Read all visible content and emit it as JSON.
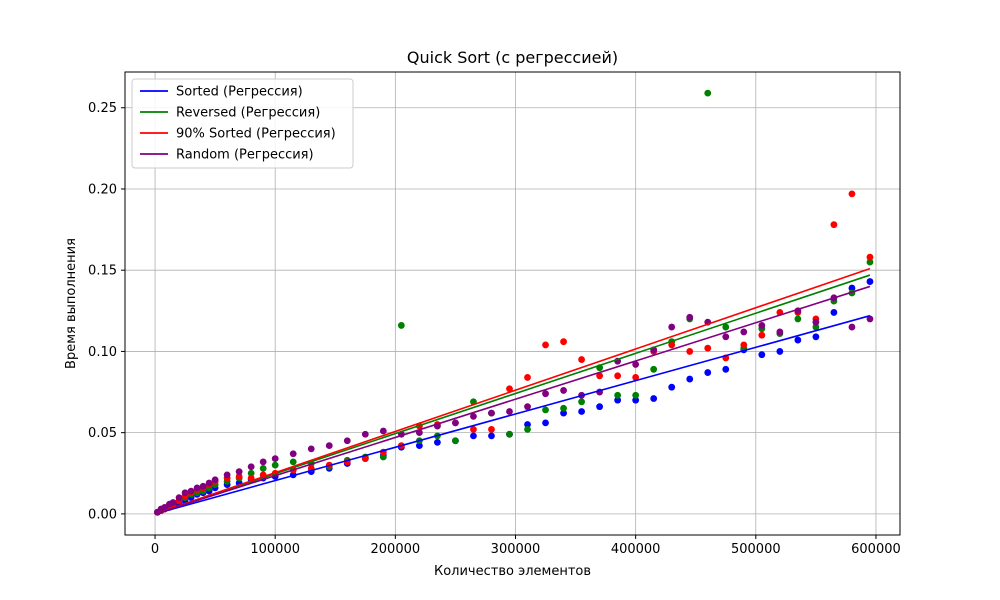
{
  "chart_data": {
    "type": "scatter",
    "title": "Quick Sort (с регрессией)",
    "xlabel": "Количество элементов",
    "ylabel": "Время выполнения",
    "xlim": [
      -25000,
      620000
    ],
    "ylim": [
      -0.013,
      0.272
    ],
    "xticks": [
      0,
      100000,
      200000,
      300000,
      400000,
      500000,
      600000
    ],
    "yticks": [
      0.0,
      0.05,
      0.1,
      0.15,
      0.2,
      0.25
    ],
    "xtick_labels": [
      "0",
      "100000",
      "200000",
      "300000",
      "400000",
      "500000",
      "600000"
    ],
    "ytick_labels": [
      "0.00",
      "0.05",
      "0.10",
      "0.15",
      "0.20",
      "0.25"
    ],
    "grid": true,
    "legend_position": "top-left",
    "series": [
      {
        "name": "Sorted (Регрессия)",
        "color": "#0000ff",
        "regression": [
          [
            0,
            0.0
          ],
          [
            595000,
            0.122
          ]
        ],
        "points": [
          [
            2000,
            0.001
          ],
          [
            5000,
            0.002
          ],
          [
            8000,
            0.003
          ],
          [
            12000,
            0.004
          ],
          [
            15000,
            0.005
          ],
          [
            20000,
            0.006
          ],
          [
            25000,
            0.008
          ],
          [
            30000,
            0.01
          ],
          [
            35000,
            0.012
          ],
          [
            40000,
            0.013
          ],
          [
            45000,
            0.014
          ],
          [
            50000,
            0.016
          ],
          [
            60000,
            0.018
          ],
          [
            70000,
            0.019
          ],
          [
            80000,
            0.021
          ],
          [
            90000,
            0.022
          ],
          [
            100000,
            0.023
          ],
          [
            115000,
            0.024
          ],
          [
            130000,
            0.026
          ],
          [
            145000,
            0.028
          ],
          [
            160000,
            0.031
          ],
          [
            175000,
            0.034
          ],
          [
            190000,
            0.036
          ],
          [
            205000,
            0.041
          ],
          [
            220000,
            0.042
          ],
          [
            235000,
            0.044
          ],
          [
            250000,
            0.045
          ],
          [
            265000,
            0.048
          ],
          [
            280000,
            0.048
          ],
          [
            295000,
            0.049
          ],
          [
            310000,
            0.055
          ],
          [
            325000,
            0.056
          ],
          [
            340000,
            0.062
          ],
          [
            355000,
            0.063
          ],
          [
            370000,
            0.066
          ],
          [
            385000,
            0.07
          ],
          [
            400000,
            0.07
          ],
          [
            415000,
            0.071
          ],
          [
            430000,
            0.078
          ],
          [
            445000,
            0.083
          ],
          [
            460000,
            0.087
          ],
          [
            475000,
            0.089
          ],
          [
            490000,
            0.101
          ],
          [
            505000,
            0.098
          ],
          [
            520000,
            0.1
          ],
          [
            535000,
            0.107
          ],
          [
            550000,
            0.109
          ],
          [
            565000,
            0.124
          ],
          [
            580000,
            0.139
          ],
          [
            595000,
            0.143
          ]
        ]
      },
      {
        "name": "Reversed (Регрессия)",
        "color": "#008000",
        "regression": [
          [
            0,
            0.0
          ],
          [
            595000,
            0.147
          ]
        ],
        "points": [
          [
            2000,
            0.001
          ],
          [
            5000,
            0.002
          ],
          [
            8000,
            0.003
          ],
          [
            12000,
            0.005
          ],
          [
            15000,
            0.006
          ],
          [
            20000,
            0.008
          ],
          [
            25000,
            0.01
          ],
          [
            30000,
            0.012
          ],
          [
            35000,
            0.013
          ],
          [
            40000,
            0.014
          ],
          [
            45000,
            0.016
          ],
          [
            50000,
            0.018
          ],
          [
            60000,
            0.02
          ],
          [
            70000,
            0.022
          ],
          [
            80000,
            0.025
          ],
          [
            90000,
            0.028
          ],
          [
            100000,
            0.03
          ],
          [
            115000,
            0.032
          ],
          [
            130000,
            0.031
          ],
          [
            145000,
            0.029
          ],
          [
            160000,
            0.033
          ],
          [
            175000,
            0.035
          ],
          [
            190000,
            0.035
          ],
          [
            205000,
            0.116
          ],
          [
            220000,
            0.045
          ],
          [
            235000,
            0.048
          ],
          [
            250000,
            0.045
          ],
          [
            265000,
            0.069
          ],
          [
            280000,
            0.062
          ],
          [
            295000,
            0.049
          ],
          [
            310000,
            0.052
          ],
          [
            325000,
            0.064
          ],
          [
            340000,
            0.065
          ],
          [
            355000,
            0.069
          ],
          [
            370000,
            0.09
          ],
          [
            385000,
            0.073
          ],
          [
            400000,
            0.073
          ],
          [
            415000,
            0.089
          ],
          [
            430000,
            0.106
          ],
          [
            445000,
            0.12
          ],
          [
            460000,
            0.259
          ],
          [
            475000,
            0.115
          ],
          [
            490000,
            0.102
          ],
          [
            505000,
            0.114
          ],
          [
            520000,
            0.111
          ],
          [
            535000,
            0.12
          ],
          [
            550000,
            0.115
          ],
          [
            565000,
            0.131
          ],
          [
            580000,
            0.136
          ],
          [
            595000,
            0.155
          ]
        ]
      },
      {
        "name": "90% Sorted (Регрессия)",
        "color": "#ff0000",
        "regression": [
          [
            0,
            0.0
          ],
          [
            595000,
            0.151
          ]
        ],
        "points": [
          [
            2000,
            0.001
          ],
          [
            5000,
            0.002
          ],
          [
            8000,
            0.003
          ],
          [
            12000,
            0.005
          ],
          [
            15000,
            0.006
          ],
          [
            20000,
            0.008
          ],
          [
            25000,
            0.011
          ],
          [
            30000,
            0.013
          ],
          [
            35000,
            0.015
          ],
          [
            40000,
            0.016
          ],
          [
            45000,
            0.018
          ],
          [
            50000,
            0.02
          ],
          [
            60000,
            0.022
          ],
          [
            70000,
            0.023
          ],
          [
            80000,
            0.022
          ],
          [
            90000,
            0.024
          ],
          [
            100000,
            0.025
          ],
          [
            115000,
            0.027
          ],
          [
            130000,
            0.028
          ],
          [
            145000,
            0.03
          ],
          [
            160000,
            0.032
          ],
          [
            175000,
            0.034
          ],
          [
            190000,
            0.038
          ],
          [
            205000,
            0.042
          ],
          [
            220000,
            0.054
          ],
          [
            235000,
            0.055
          ],
          [
            250000,
            0.056
          ],
          [
            265000,
            0.052
          ],
          [
            280000,
            0.052
          ],
          [
            295000,
            0.077
          ],
          [
            310000,
            0.084
          ],
          [
            325000,
            0.104
          ],
          [
            340000,
            0.106
          ],
          [
            355000,
            0.095
          ],
          [
            370000,
            0.085
          ],
          [
            385000,
            0.085
          ],
          [
            400000,
            0.084
          ],
          [
            415000,
            0.1
          ],
          [
            430000,
            0.104
          ],
          [
            445000,
            0.1
          ],
          [
            460000,
            0.102
          ],
          [
            475000,
            0.096
          ],
          [
            490000,
            0.104
          ],
          [
            505000,
            0.11
          ],
          [
            520000,
            0.124
          ],
          [
            535000,
            0.124
          ],
          [
            550000,
            0.12
          ],
          [
            565000,
            0.178
          ],
          [
            580000,
            0.197
          ],
          [
            595000,
            0.158
          ]
        ]
      },
      {
        "name": "Random (Регрессия)",
        "color": "#800080",
        "regression": [
          [
            0,
            0.0
          ],
          [
            595000,
            0.14
          ]
        ],
        "points": [
          [
            2000,
            0.001
          ],
          [
            5000,
            0.003
          ],
          [
            8000,
            0.004
          ],
          [
            12000,
            0.006
          ],
          [
            15000,
            0.007
          ],
          [
            20000,
            0.01
          ],
          [
            25000,
            0.013
          ],
          [
            30000,
            0.014
          ],
          [
            35000,
            0.016
          ],
          [
            40000,
            0.017
          ],
          [
            45000,
            0.019
          ],
          [
            50000,
            0.021
          ],
          [
            60000,
            0.024
          ],
          [
            70000,
            0.026
          ],
          [
            80000,
            0.029
          ],
          [
            90000,
            0.032
          ],
          [
            100000,
            0.034
          ],
          [
            115000,
            0.037
          ],
          [
            130000,
            0.04
          ],
          [
            145000,
            0.042
          ],
          [
            160000,
            0.045
          ],
          [
            175000,
            0.049
          ],
          [
            190000,
            0.051
          ],
          [
            205000,
            0.049
          ],
          [
            220000,
            0.05
          ],
          [
            235000,
            0.054
          ],
          [
            250000,
            0.056
          ],
          [
            265000,
            0.06
          ],
          [
            280000,
            0.062
          ],
          [
            295000,
            0.063
          ],
          [
            310000,
            0.066
          ],
          [
            325000,
            0.074
          ],
          [
            340000,
            0.076
          ],
          [
            355000,
            0.073
          ],
          [
            370000,
            0.075
          ],
          [
            385000,
            0.094
          ],
          [
            400000,
            0.092
          ],
          [
            415000,
            0.101
          ],
          [
            430000,
            0.115
          ],
          [
            445000,
            0.121
          ],
          [
            460000,
            0.118
          ],
          [
            475000,
            0.109
          ],
          [
            490000,
            0.112
          ],
          [
            505000,
            0.116
          ],
          [
            520000,
            0.112
          ],
          [
            535000,
            0.125
          ],
          [
            550000,
            0.118
          ],
          [
            565000,
            0.133
          ],
          [
            580000,
            0.115
          ],
          [
            595000,
            0.12
          ]
        ]
      }
    ]
  }
}
